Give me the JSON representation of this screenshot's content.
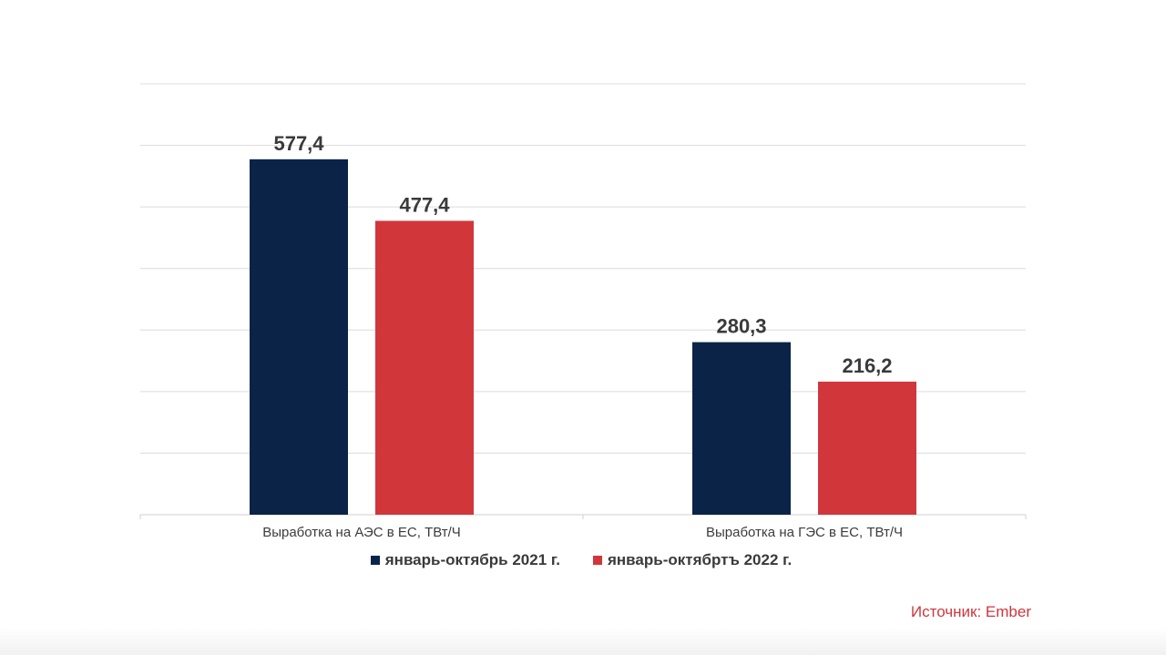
{
  "chart_data": {
    "type": "bar",
    "categories": [
      "Выработка на АЭС в ЕС, ТВт/Ч",
      "Выработка на ГЭС в ЕС, ТВт/Ч"
    ],
    "series": [
      {
        "name": "январь-октябрь 2021 г.",
        "values": [
          577.4,
          280.3
        ],
        "labels": [
          "577,4",
          "280,3"
        ],
        "color": "#0b2347"
      },
      {
        "name": "январь-октябртъ 2022 г.",
        "values": [
          477.4,
          216.2
        ],
        "labels": [
          "477,4",
          "216,2"
        ],
        "color": "#d1363b"
      }
    ],
    "ylim": [
      0,
      700
    ],
    "grid": true,
    "legend_position": "bottom"
  },
  "source": "Источник: Ember"
}
